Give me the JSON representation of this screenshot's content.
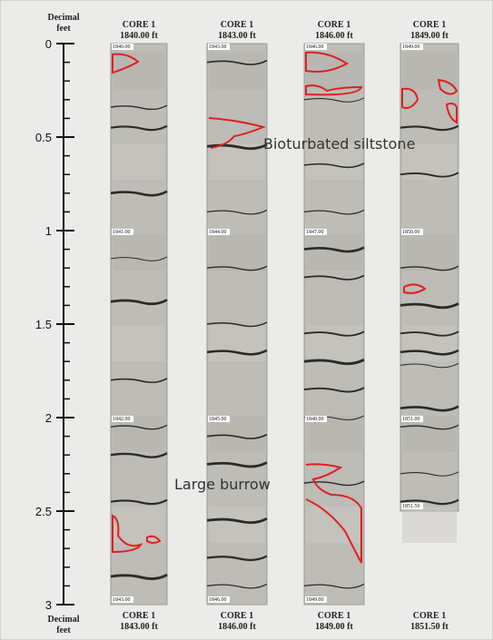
{
  "axis": {
    "label_top": [
      "Decimal",
      "feet"
    ],
    "label_bottom": [
      "Decimal",
      "feet"
    ],
    "ticks": [
      0,
      0.5,
      1,
      1.5,
      2,
      2.5,
      3
    ]
  },
  "cores": [
    {
      "top_title": "CORE 1",
      "top_depth": "1840.00 ft",
      "bottom_title": "CORE 1",
      "bottom_depth": "1843.00 ft",
      "depth_marks": [
        "1840.00",
        "1841.00",
        "1842.00",
        "1843.00"
      ]
    },
    {
      "top_title": "CORE 1",
      "top_depth": "1843.00 ft",
      "bottom_title": "CORE 1",
      "bottom_depth": "1846.00 ft",
      "depth_marks": [
        "1843.00",
        "1844.00",
        "1845.00",
        "1846.00"
      ]
    },
    {
      "top_title": "CORE 1",
      "top_depth": "1846.00 ft",
      "bottom_title": "CORE 1",
      "bottom_depth": "1849.00 ft",
      "depth_marks": [
        "1846.00",
        "1847.00",
        "1848.00",
        "1849.00"
      ]
    },
    {
      "top_title": "CORE 1",
      "top_depth": "1849.00 ft",
      "bottom_title": "CORE 1",
      "bottom_depth": "1851.50 ft",
      "depth_marks": [
        "1849.00",
        "1850.00",
        "1851.00",
        "1851.50"
      ]
    }
  ],
  "annotations": [
    "Bioturbated siltstone",
    "Large burrow"
  ]
}
